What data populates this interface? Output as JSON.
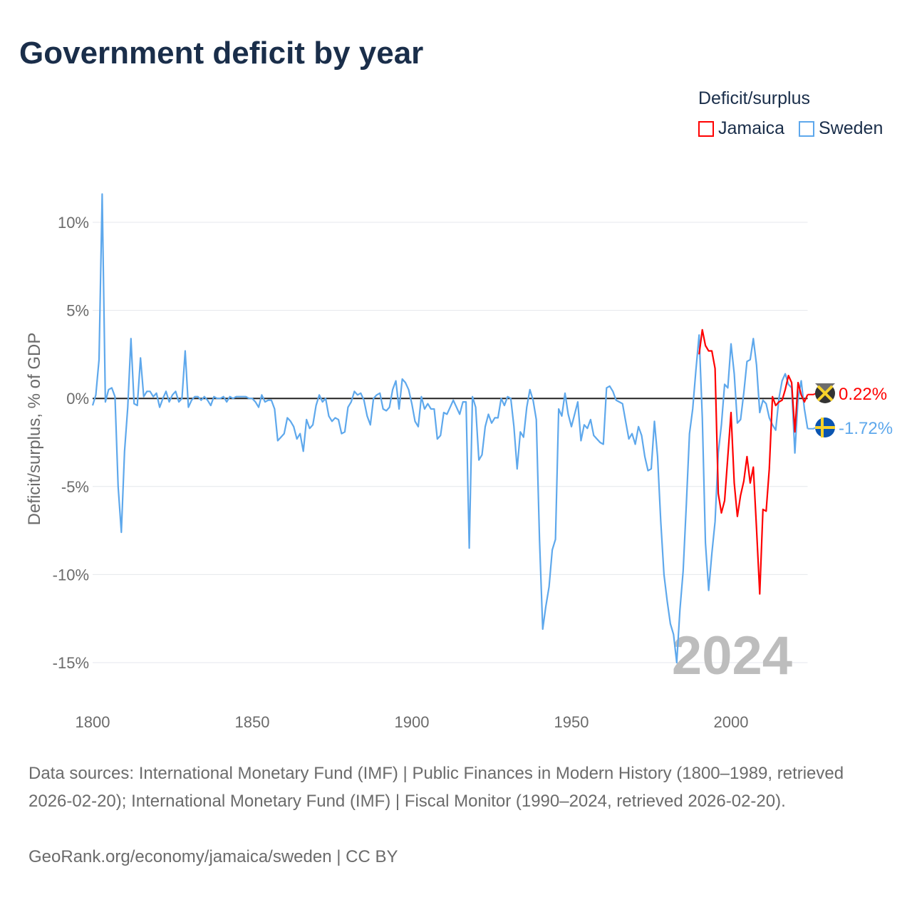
{
  "title": "Government deficit by year",
  "legend": {
    "title": "Deficit/surplus",
    "items": [
      {
        "label": "Jamaica",
        "color": "#ff0000"
      },
      {
        "label": "Sweden",
        "color": "#5ea8ec"
      }
    ]
  },
  "footer": {
    "sources": "Data sources: International Monetary Fund (IMF) | Public Finances in Modern History (1800–1989, retrieved 2026-02-20); International Monetary Fund (IMF) | Fiscal Monitor (1990–2024, retrieved 2026-02-20).",
    "credit": "GeoRank.org/economy/jamaica/sweden | CC BY"
  },
  "chart_data": {
    "type": "line",
    "title": "Government deficit by year",
    "ylabel": "Deficit/surplus, % of GDP",
    "xlabel": "",
    "xlim": [
      1800,
      2024
    ],
    "ylim": [
      -15,
      10
    ],
    "xticks": [
      "1800",
      "1850",
      "1900",
      "1950",
      "2000"
    ],
    "xtick_values": [
      1800,
      1850,
      1900,
      1950,
      2000
    ],
    "yticks": [
      "10%",
      "5%",
      "0%",
      "-5%",
      "-10%",
      "-15%"
    ],
    "ytick_values": [
      10,
      5,
      0,
      -5,
      -10,
      -15
    ],
    "grid": true,
    "legend_position": "top-right",
    "year_watermark": "2024",
    "series": [
      {
        "name": "Sweden",
        "color": "#5ea8ec",
        "start_year": 1800,
        "end_label": "-1.72%",
        "values": [
          -0.4,
          0.2,
          2.2,
          11.6,
          -0.2,
          0.5,
          0.6,
          0.1,
          -5,
          -7.6,
          -3,
          -0.5,
          3.4,
          -0.3,
          -0.4,
          2.3,
          0.1,
          0.4,
          0.4,
          0.1,
          0.3,
          -0.5,
          0,
          0.4,
          -0.2,
          0.2,
          0.4,
          -0.2,
          0,
          2.7,
          -0.5,
          -0.1,
          0.1,
          0.1,
          -0.1,
          0.1,
          -0.1,
          -0.4,
          0.1,
          0,
          0,
          0.1,
          -0.2,
          0.1,
          0,
          0.1,
          0.1,
          0.1,
          0.1,
          0,
          0,
          -0.2,
          -0.5,
          0.2,
          -0.2,
          -0.1,
          -0.1,
          -0.6,
          -2.4,
          -2.2,
          -2.0,
          -1.1,
          -1.3,
          -1.6,
          -2.3,
          -2.0,
          -3.0,
          -1.2,
          -1.7,
          -1.5,
          -0.4,
          0.2,
          -0.2,
          0,
          -1.0,
          -1.3,
          -1.1,
          -1.2,
          -2.0,
          -1.9,
          -0.5,
          -0.2,
          0.4,
          0.2,
          0.3,
          -0.1,
          -1.0,
          -1.5,
          0,
          0.2,
          0.3,
          -0.6,
          -0.7,
          -0.5,
          0.5,
          1.0,
          -0.6,
          1.1,
          0.9,
          0.5,
          -0.3,
          -1.3,
          -1.6,
          0.1,
          -0.6,
          -0.3,
          -0.6,
          -0.6,
          -2.3,
          -2.1,
          -0.8,
          -0.9,
          -0.5,
          -0.1,
          -0.5,
          -0.9,
          -0.2,
          -0.2,
          -8.5,
          0.1,
          -0.5,
          -3.5,
          -3.2,
          -1.6,
          -0.9,
          -1.4,
          -1.1,
          -1.1,
          0,
          -0.4,
          0.1,
          0,
          -1.6,
          -4.0,
          -1.9,
          -2.2,
          -0.5,
          0.5,
          -0.1,
          -1.2,
          -8,
          -13.1,
          -11.8,
          -10.7,
          -8.6,
          -8.0,
          -0.6,
          -1.0,
          0.3,
          -0.9,
          -1.6,
          -0.9,
          -0.2,
          -2.4,
          -1.5,
          -1.7,
          -1.2,
          -2.1,
          -2.3,
          -2.5,
          -2.6,
          0.6,
          0.7,
          0.4,
          -0.1,
          -0.2,
          -0.3,
          -1.3,
          -2.3,
          -2.0,
          -2.6,
          -1.6,
          -2.1,
          -3.3,
          -4.1,
          -4.0,
          -1.3,
          -3.3,
          -7,
          -10,
          -11.5,
          -12.8,
          -13.4,
          -15.0,
          -12,
          -9.8,
          -6,
          -2,
          -0.6,
          1.6,
          3.6,
          -1.1,
          -8.2,
          -10.9,
          -8.8,
          -7.0,
          -3.1,
          -1.5,
          0.8,
          0.6,
          3.1,
          1.4,
          -1.4,
          -1.2,
          0.3,
          2.1,
          2.2,
          3.4,
          1.9,
          -0.8,
          -0.1,
          -0.3,
          -1.1,
          -1.5,
          -1.8,
          0,
          1.0,
          1.4,
          0.8,
          0.6,
          -3.1,
          0,
          1.0,
          -0.6,
          -1.72
        ]
      },
      {
        "name": "Jamaica",
        "color": "#ff0000",
        "start_year": 1990,
        "end_label": "0.22%",
        "values": [
          2.5,
          3.9,
          3.0,
          2.7,
          2.7,
          1.7,
          -5.4,
          -6.5,
          -5.8,
          -3.3,
          -0.8,
          -4.8,
          -6.7,
          -5.5,
          -4.7,
          -3.3,
          -4.8,
          -3.9,
          -7.4,
          -11.1,
          -6.3,
          -6.4,
          -4.0,
          0.1,
          -0.4,
          -0.2,
          -0.1,
          0.5,
          1.3,
          0.9,
          -1.9,
          0.9,
          0.2,
          -0.2,
          0.22
        ]
      }
    ]
  }
}
